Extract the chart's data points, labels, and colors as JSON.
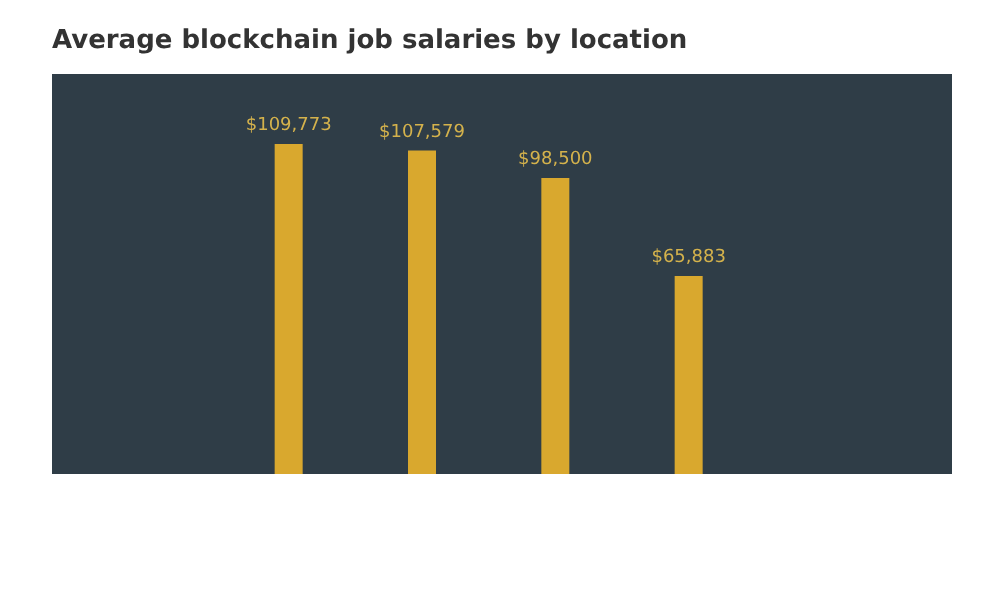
{
  "chart_data": {
    "type": "bar",
    "title": "Average blockchain job salaries by location",
    "categories": [
      null,
      null,
      null,
      null
    ],
    "values": [
      109773,
      107579,
      98500,
      65883
    ],
    "value_labels": [
      "$109,773",
      "$107,579",
      "$98,500",
      "$65,883"
    ],
    "color": "#d9a82e",
    "grid": false
  }
}
